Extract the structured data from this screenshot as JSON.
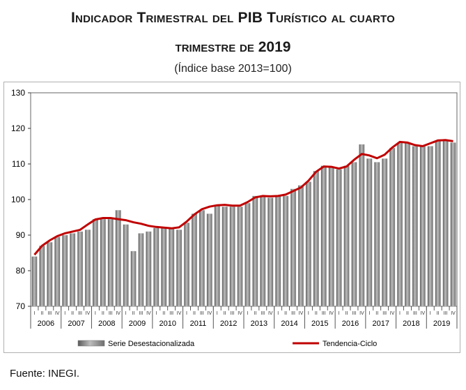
{
  "header": {
    "title_line1": "Indicador Trimestral del PIB Turístico al cuarto",
    "title_line2": "trimestre de 2019",
    "subtitle": "(Índice base 2013=100)"
  },
  "source": "Fuente: INEGI.",
  "colors": {
    "bar": "#8c8c8c",
    "bar_edge": "#d0d0d0",
    "trend": "#c00000",
    "plot_bg": "#ffffff"
  },
  "chart_data": {
    "type": "bar",
    "title": "Indicador Trimestral del PIB Turístico al cuarto trimestre de 2019",
    "subtitle": "(Índice base 2013=100)",
    "xlabel": "",
    "ylabel": "",
    "ylim": [
      70,
      130
    ],
    "yticks": [
      70,
      80,
      90,
      100,
      110,
      120,
      130
    ],
    "years": [
      "2006",
      "2007",
      "2008",
      "2009",
      "2010",
      "2011",
      "2012",
      "2013",
      "2014",
      "2015",
      "2016",
      "2017",
      "2018",
      "2019"
    ],
    "quarter_labels": [
      "I",
      "II",
      "III",
      "IV"
    ],
    "series": [
      {
        "name": "Serie Desestacionalizada",
        "kind": "bar",
        "values": [
          84,
          87,
          88,
          89.5,
          90,
          90.5,
          91,
          91.5,
          94.5,
          94.5,
          94.5,
          97,
          93,
          85.5,
          90.5,
          91,
          92,
          92,
          92,
          91.5,
          93.5,
          96,
          97,
          96,
          98.5,
          98,
          98,
          98,
          99,
          101,
          101,
          100.5,
          101,
          101,
          103,
          104,
          105,
          108,
          109.5,
          109,
          108.5,
          109.5,
          110.5,
          115.5,
          111.5,
          110.5,
          111.5,
          114.5,
          116,
          116,
          115,
          115,
          115,
          116.5,
          116.5,
          116
        ]
      },
      {
        "name": "Tendencia-Ciclo",
        "kind": "line",
        "values": [
          84.5,
          87,
          88.5,
          89.7,
          90.5,
          91,
          91.5,
          93,
          94.4,
          94.8,
          94.8,
          94.5,
          94.2,
          93.6,
          93.2,
          92.6,
          92.3,
          92.1,
          91.9,
          92.2,
          93.8,
          95.8,
          97.3,
          98,
          98.4,
          98.5,
          98.3,
          98.3,
          99.3,
          100.6,
          101,
          100.9,
          101,
          101.4,
          102.4,
          103.4,
          105.3,
          107.8,
          109.3,
          109.2,
          108.7,
          109.3,
          111.2,
          112.8,
          112.4,
          111.6,
          112.6,
          114.6,
          116.2,
          116,
          115.3,
          115,
          115.8,
          116.6,
          116.7,
          116.4
        ]
      }
    ],
    "legend": [
      "Serie Desestacionalizada",
      "Tendencia-Ciclo"
    ]
  }
}
